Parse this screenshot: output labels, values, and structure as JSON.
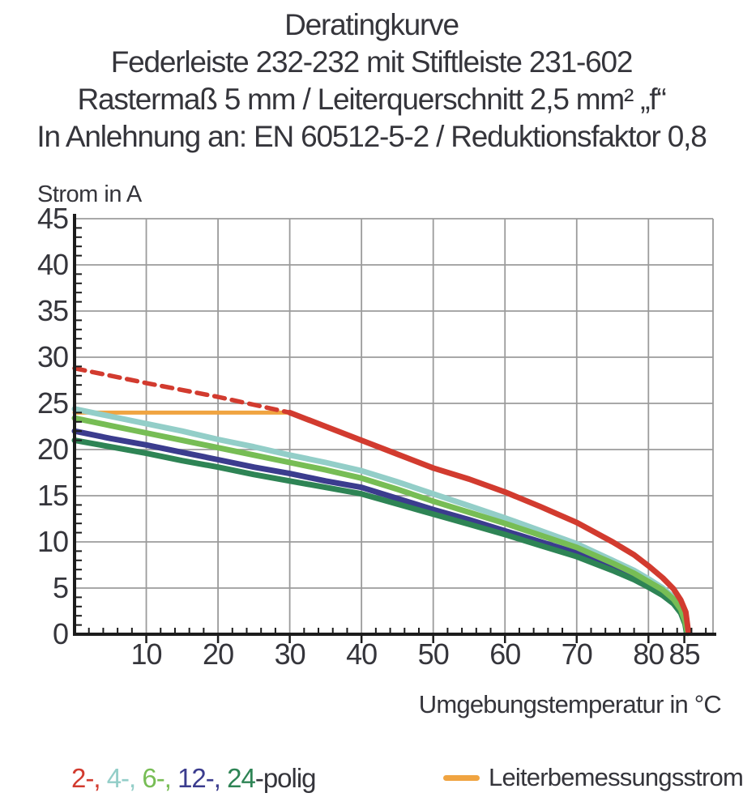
{
  "title": {
    "lines": [
      "Deratingkurve",
      "Federleiste 232-232 mit Stiftleiste 231-602",
      "Rastermaß 5 mm / Leiterquerschnitt 2,5 mm² „f“",
      "In Anlehnung an: EN 60512-5-2 / Reduktionsfaktor 0,8"
    ]
  },
  "chart_data": {
    "type": "line",
    "title": "Deratingkurve Federleiste 232-232 mit Stiftleiste 231-602",
    "xlabel": "Umgebungstemperatur in °C",
    "ylabel": "Strom in A",
    "xlim": [
      0,
      89
    ],
    "ylim": [
      0,
      45
    ],
    "xticks_major": [
      10,
      20,
      30,
      40,
      50,
      60,
      70,
      80,
      85
    ],
    "yticks_major": [
      0,
      5,
      10,
      15,
      20,
      25,
      30,
      35,
      40,
      45
    ],
    "xgridlines": [
      10,
      20,
      30,
      40,
      50,
      60,
      70,
      80
    ],
    "x_minor_step": 2,
    "y_minor_step": 1,
    "grid": true,
    "grid_color": "#9b9b9b",
    "axis_color": "#1c1c1c",
    "legend_position": "bottom",
    "series": [
      {
        "id": "leiterbemessungsstrom",
        "name": "Leiterbemessungsstrom",
        "color": "#f0a441",
        "style": "solid",
        "width": 5,
        "points": [
          [
            0,
            24
          ],
          [
            30,
            24
          ]
        ]
      },
      {
        "id": "polig-4",
        "name": "4-polig",
        "color": "#93cec8",
        "style": "solid",
        "width": 7,
        "points": [
          [
            0,
            24.4
          ],
          [
            5,
            23.6
          ],
          [
            10,
            22.8
          ],
          [
            15,
            22.0
          ],
          [
            20,
            21.1
          ],
          [
            25,
            20.3
          ],
          [
            30,
            19.4
          ],
          [
            35,
            18.6
          ],
          [
            40,
            17.7
          ],
          [
            45,
            16.5
          ],
          [
            50,
            15.2
          ],
          [
            55,
            13.9
          ],
          [
            60,
            12.6
          ],
          [
            65,
            11.2
          ],
          [
            70,
            9.8
          ],
          [
            75,
            8.0
          ],
          [
            78,
            6.9
          ],
          [
            80,
            6.0
          ],
          [
            82,
            5.0
          ],
          [
            83.5,
            4.0
          ],
          [
            84.5,
            2.8
          ],
          [
            85.1,
            1.5
          ],
          [
            85.4,
            0.2
          ]
        ]
      },
      {
        "id": "polig-12",
        "name": "12-polig",
        "color": "#3b3c8e",
        "style": "solid",
        "width": 7,
        "points": [
          [
            0,
            22.0
          ],
          [
            5,
            21.2
          ],
          [
            10,
            20.5
          ],
          [
            15,
            19.7
          ],
          [
            20,
            18.9
          ],
          [
            25,
            18.1
          ],
          [
            30,
            17.4
          ],
          [
            35,
            16.6
          ],
          [
            40,
            15.9
          ],
          [
            45,
            14.7
          ],
          [
            50,
            13.5
          ],
          [
            55,
            12.4
          ],
          [
            60,
            11.2
          ],
          [
            65,
            10.0
          ],
          [
            70,
            8.8
          ],
          [
            75,
            7.2
          ],
          [
            78,
            6.2
          ],
          [
            80,
            5.4
          ],
          [
            82,
            4.5
          ],
          [
            83.5,
            3.5
          ],
          [
            84.5,
            2.5
          ],
          [
            85.1,
            1.2
          ],
          [
            85.35,
            0.2
          ]
        ]
      },
      {
        "id": "polig-24",
        "name": "24-polig",
        "color": "#2e8455",
        "style": "solid",
        "width": 7,
        "points": [
          [
            0,
            21.0
          ],
          [
            5,
            20.3
          ],
          [
            10,
            19.6
          ],
          [
            15,
            18.8
          ],
          [
            20,
            18.1
          ],
          [
            25,
            17.3
          ],
          [
            30,
            16.6
          ],
          [
            35,
            15.9
          ],
          [
            40,
            15.2
          ],
          [
            45,
            14.1
          ],
          [
            50,
            13.0
          ],
          [
            55,
            11.9
          ],
          [
            60,
            10.8
          ],
          [
            65,
            9.6
          ],
          [
            70,
            8.4
          ],
          [
            75,
            6.9
          ],
          [
            78,
            5.9
          ],
          [
            80,
            5.1
          ],
          [
            82,
            4.2
          ],
          [
            83.5,
            3.3
          ],
          [
            84.5,
            2.3
          ],
          [
            85.1,
            1.1
          ],
          [
            85.3,
            0.2
          ]
        ]
      },
      {
        "id": "polig-6",
        "name": "6-polig",
        "color": "#77bd55",
        "style": "solid",
        "width": 7,
        "points": [
          [
            0,
            23.4
          ],
          [
            5,
            22.6
          ],
          [
            10,
            21.8
          ],
          [
            15,
            21.0
          ],
          [
            20,
            20.2
          ],
          [
            25,
            19.4
          ],
          [
            30,
            18.6
          ],
          [
            35,
            17.8
          ],
          [
            40,
            16.9
          ],
          [
            45,
            15.7
          ],
          [
            50,
            14.4
          ],
          [
            55,
            13.2
          ],
          [
            60,
            12.0
          ],
          [
            65,
            10.7
          ],
          [
            70,
            9.4
          ],
          [
            75,
            7.7
          ],
          [
            78,
            6.6
          ],
          [
            80,
            5.7
          ],
          [
            82,
            4.8
          ],
          [
            83.5,
            3.8
          ],
          [
            84.5,
            2.7
          ],
          [
            85.1,
            1.4
          ],
          [
            85.45,
            0.1
          ]
        ]
      },
      {
        "id": "polig-2-gestrichelt",
        "name": "2-polig (gestrichelt)",
        "color": "#d23b2f",
        "style": "dashed",
        "width": 5.5,
        "points": [
          [
            0,
            28.8
          ],
          [
            10,
            27.2
          ],
          [
            20,
            25.7
          ],
          [
            30,
            24.0
          ]
        ]
      },
      {
        "id": "polig-2",
        "name": "2-polig",
        "color": "#d23b2f",
        "style": "solid",
        "width": 7,
        "points": [
          [
            30,
            24.0
          ],
          [
            35,
            22.5
          ],
          [
            40,
            21.0
          ],
          [
            45,
            19.5
          ],
          [
            50,
            18.0
          ],
          [
            55,
            16.8
          ],
          [
            60,
            15.4
          ],
          [
            65,
            13.8
          ],
          [
            70,
            12.1
          ],
          [
            75,
            10.0
          ],
          [
            78,
            8.6
          ],
          [
            80,
            7.4
          ],
          [
            82,
            6.1
          ],
          [
            83.5,
            4.9
          ],
          [
            84.5,
            3.7
          ],
          [
            85.2,
            2.4
          ],
          [
            85.55,
            0.3
          ]
        ]
      }
    ]
  },
  "legend": {
    "poles": [
      {
        "label": "2-,",
        "color": "#d23b2f"
      },
      {
        "label": "4-,",
        "color": "#93cec8"
      },
      {
        "label": "6-,",
        "color": "#77bd55"
      },
      {
        "label": "12-,",
        "color": "#3b3c8e"
      },
      {
        "label": "24",
        "color": "#2e8455"
      }
    ],
    "poles_suffix": "-polig",
    "rated_label": "Leiterbemessungsstrom",
    "rated_color": "#f0a441"
  }
}
